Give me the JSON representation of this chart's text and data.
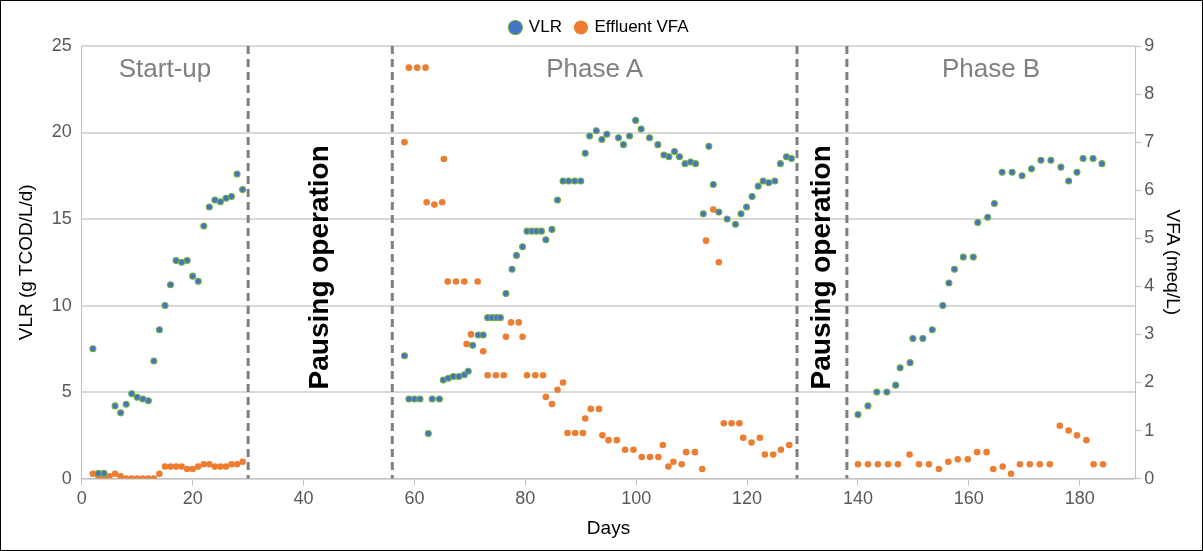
{
  "chart_data": {
    "type": "scatter",
    "xlabel": "Days",
    "ylabel": "VLR (g TCOD/L/d)",
    "y2label": "VFA (meq/L)",
    "xlim": [
      0,
      190
    ],
    "xticks": [
      0,
      20,
      40,
      60,
      80,
      100,
      120,
      140,
      160,
      180
    ],
    "ylim": [
      0,
      25
    ],
    "yticks": [
      0,
      5,
      10,
      15,
      20,
      25
    ],
    "y2lim": [
      0,
      9
    ],
    "y2ticks": [
      0,
      1,
      2,
      3,
      4,
      5,
      6,
      7,
      8,
      9
    ],
    "grid": "y",
    "legend": "top",
    "marker": "circle",
    "ref_lines": [
      {
        "axis": "x",
        "value": 30,
        "color": "#7f7f7f",
        "line_style": "dashed"
      },
      {
        "axis": "x",
        "value": 56,
        "color": "#7f7f7f",
        "line_style": "dashed"
      },
      {
        "axis": "x",
        "value": 129,
        "color": "#7f7f7f",
        "line_style": "dashed"
      },
      {
        "axis": "x",
        "value": 138,
        "color": "#7f7f7f",
        "line_style": "dashed"
      }
    ],
    "annotations": [
      "Start-up",
      "Pausing operation",
      "Phase A",
      "Pausing operation",
      "Phase B"
    ],
    "series": [
      {
        "name": "VLR",
        "color": "#4472c4",
        "x": [
          2,
          3,
          4,
          6,
          7,
          8,
          9,
          10,
          11,
          12,
          13,
          14,
          15,
          16,
          17,
          18,
          19,
          20,
          21,
          22,
          23,
          24,
          25,
          26,
          27,
          28,
          29,
          58.2,
          59,
          60,
          61,
          62.5,
          63.2,
          64.5,
          65.2,
          66.1,
          67,
          68,
          69,
          69.7,
          70.5,
          71.5,
          72.4,
          73.2,
          74,
          74.8,
          75.5,
          76.5,
          77.6,
          78.4,
          79.5,
          80.3,
          81.2,
          82,
          82.9,
          83.7,
          84.8,
          85.8,
          86.8,
          87.8,
          88.9,
          90,
          90.8,
          91.6,
          92.8,
          93.8,
          94.7,
          96.8,
          97.7,
          98.8,
          99.9,
          100.9,
          102.4,
          103.9,
          105,
          105.9,
          106.9,
          107.8,
          108.8,
          109.8,
          110.7,
          112.1,
          113.1,
          113.9,
          114.9,
          116.4,
          117.9,
          118.9,
          119.9,
          120.9,
          122,
          122.9,
          123.9,
          125,
          126,
          127.1,
          128,
          140,
          141.8,
          143.4,
          145.2,
          146.8,
          147.6,
          149.4,
          149.9,
          151.7,
          153.4,
          155.3,
          156.4,
          157.4,
          159,
          160.8,
          161.6,
          163.4,
          164.6,
          166,
          167.8,
          169.6,
          171.3,
          173,
          174.8,
          176.6,
          178,
          179.5,
          180.6,
          182.4,
          184
        ],
        "values": [
          7.5,
          0.3,
          0.3,
          4.2,
          3.8,
          4.3,
          4.9,
          4.7,
          4.6,
          4.5,
          6.8,
          8.6,
          10.0,
          11.2,
          12.6,
          12.5,
          12.6,
          11.7,
          11.4,
          14.6,
          15.7,
          16.1,
          16.0,
          16.2,
          16.3,
          17.6,
          16.7,
          7.1,
          4.6,
          4.6,
          4.6,
          2.6,
          4.6,
          4.6,
          5.7,
          5.8,
          5.9,
          5.9,
          6.0,
          6.2,
          7.7,
          8.3,
          8.3,
          9.3,
          9.3,
          9.3,
          9.3,
          10.7,
          12.1,
          12.9,
          13.4,
          14.3,
          14.3,
          14.3,
          14.3,
          13.8,
          14.4,
          16.1,
          17.2,
          17.2,
          17.2,
          17.2,
          18.8,
          19.8,
          20.1,
          19.6,
          19.9,
          19.7,
          19.3,
          19.8,
          20.7,
          20.2,
          19.7,
          19.3,
          18.7,
          18.6,
          18.9,
          18.6,
          18.2,
          18.3,
          18.2,
          15.3,
          19.2,
          17.0,
          15.4,
          15.0,
          14.7,
          15.3,
          15.7,
          16.3,
          16.9,
          17.2,
          17.1,
          17.2,
          18.2,
          18.6,
          18.5,
          3.7,
          4.2,
          5.0,
          5.0,
          5.4,
          6.4,
          6.7,
          8.1,
          8.1,
          8.6,
          10.0,
          11.3,
          12.1,
          12.8,
          12.8,
          14.8,
          15.1,
          15.9,
          17.7,
          17.7,
          17.5,
          17.9,
          18.4,
          18.4,
          18.0,
          17.2,
          17.7,
          18.5,
          18.5,
          18.2
        ]
      },
      {
        "name": "Effluent VFA",
        "color": "#ed7d31",
        "axis": "y2",
        "x": [
          2,
          3,
          4,
          5,
          6,
          7,
          8,
          9,
          10,
          11,
          12,
          13,
          14,
          15,
          16,
          17,
          18,
          19,
          20,
          21,
          22,
          23,
          24,
          25,
          26,
          27,
          28,
          29,
          58.2,
          59,
          60.5,
          62,
          62.2,
          63.6,
          65,
          65.3,
          66,
          67.5,
          69,
          69.4,
          70.2,
          71.4,
          72.4,
          73.2,
          74.7,
          76.1,
          76.5,
          77.4,
          78.8,
          79.5,
          80.3,
          81.8,
          83.2,
          83.7,
          84.8,
          85.8,
          86.8,
          87.6,
          89,
          90.4,
          90.8,
          91.8,
          93.3,
          93.9,
          95,
          96.5,
          98,
          99.5,
          101,
          102.5,
          104,
          104.8,
          105.8,
          106.7,
          108.2,
          109,
          110.6,
          111.9,
          112.6,
          113.9,
          114.9,
          115.8,
          117.2,
          118.6,
          119.3,
          120.8,
          122.3,
          123.2,
          124.7,
          126.1,
          127.6,
          140,
          141.8,
          143.6,
          145.4,
          147.2,
          149.3,
          151,
          152.8,
          154.6,
          156.3,
          158,
          159.8,
          161.5,
          163.2,
          164.4,
          166.1,
          167.6,
          169.2,
          171,
          172.8,
          174.6,
          176.4,
          178,
          179.5,
          181.2,
          182.5,
          184.2
        ],
        "values": [
          0.1,
          0.05,
          0,
          0.05,
          0.1,
          0.05,
          0,
          0,
          0,
          0,
          0,
          0,
          0.1,
          0.25,
          0.25,
          0.25,
          0.25,
          0.2,
          0.2,
          0.25,
          0.3,
          0.3,
          0.25,
          0.25,
          0.25,
          0.3,
          0.3,
          0.35,
          7.0,
          8.55,
          8.55,
          8.55,
          5.75,
          5.7,
          5.75,
          6.65,
          4.1,
          4.1,
          4.1,
          2.8,
          3.0,
          4.1,
          2.65,
          2.15,
          2.15,
          2.15,
          2.95,
          3.25,
          3.25,
          2.95,
          2.15,
          2.15,
          2.15,
          1.7,
          1.55,
          1.85,
          2.0,
          0.95,
          0.95,
          0.95,
          1.25,
          1.45,
          1.45,
          0.9,
          0.8,
          0.8,
          0.6,
          0.6,
          0.45,
          0.45,
          0.45,
          0.7,
          0.25,
          0.35,
          0.3,
          0.55,
          0.55,
          0.2,
          4.95,
          5.6,
          4.5,
          1.15,
          1.15,
          1.15,
          0.85,
          0.75,
          0.85,
          0.5,
          0.5,
          0.6,
          0.7,
          0.3,
          0.3,
          0.3,
          0.3,
          0.3,
          0.5,
          0.3,
          0.3,
          0.2,
          0.35,
          0.4,
          0.4,
          0.55,
          0.55,
          0.2,
          0.25,
          0.1,
          0.3,
          0.3,
          0.3,
          0.3,
          1.1,
          1.0,
          0.9,
          0.8,
          0.3,
          0.3
        ]
      }
    ]
  }
}
